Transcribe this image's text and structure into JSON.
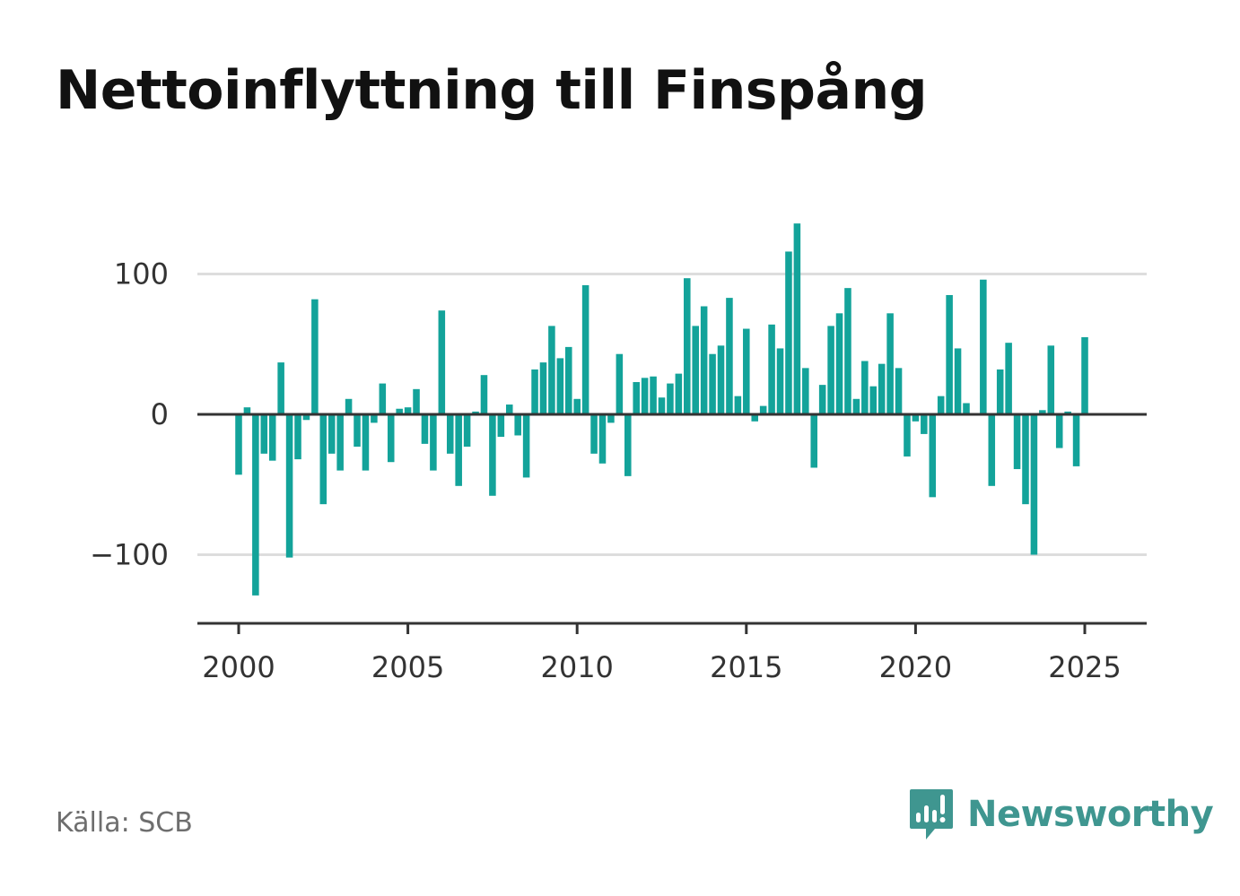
{
  "title": "Nettoinflyttning till Finspång",
  "source": "Källa: SCB",
  "brand": {
    "name": "Newsworthy",
    "icon": "newsworthy-logo-icon",
    "color": "#3f9690"
  },
  "colors": {
    "bar": "#13a39a",
    "zero_line": "#333333",
    "grid": "#dddddd",
    "axis": "#333333"
  },
  "chart_data": {
    "type": "bar",
    "title": "Nettoinflyttning till Finspång",
    "xlabel": "",
    "ylabel": "",
    "xlim": [
      1999.5,
      2026.5
    ],
    "ylim": [
      -150,
      140
    ],
    "yticks": [
      -100,
      0,
      100
    ],
    "ytick_labels": [
      "−100",
      "0",
      "100"
    ],
    "xticks": [
      2000,
      2005,
      2010,
      2015,
      2020,
      2025
    ],
    "xtick_labels": [
      "2000",
      "2005",
      "2010",
      "2015",
      "2020",
      "2025"
    ],
    "grid": true,
    "legend": "none",
    "frequency": "quarterly",
    "start": "2000 Q1",
    "values": [
      -43,
      5,
      -129,
      -28,
      -33,
      37,
      -102,
      -32,
      -4,
      82,
      -64,
      -28,
      -40,
      11,
      -23,
      -40,
      -6,
      22,
      -34,
      4,
      5,
      18,
      -21,
      -40,
      74,
      -28,
      -51,
      -23,
      2,
      28,
      -58,
      -16,
      7,
      -15,
      -45,
      32,
      37,
      63,
      40,
      48,
      11,
      92,
      -28,
      -35,
      -6,
      43,
      -44,
      23,
      26,
      27,
      12,
      22,
      29,
      97,
      63,
      77,
      43,
      49,
      83,
      13,
      61,
      -5,
      6,
      64,
      47,
      116,
      136,
      33,
      -38,
      21,
      63,
      72,
      90,
      11,
      38,
      20,
      36,
      72,
      33,
      -30,
      -5,
      -14,
      -59,
      13,
      85,
      47,
      8,
      0,
      96,
      -51,
      32,
      51,
      -39,
      -64,
      -100,
      3,
      49,
      -24,
      2,
      -37,
      55
    ]
  }
}
